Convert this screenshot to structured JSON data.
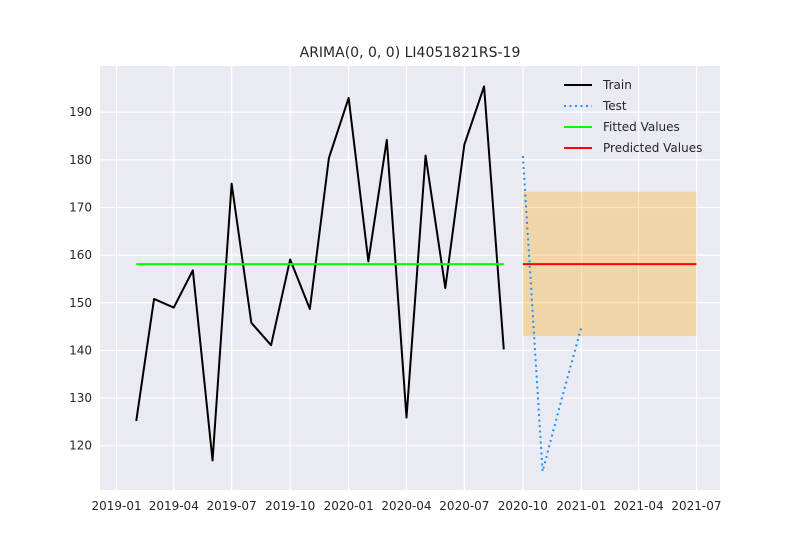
{
  "chart_data": {
    "type": "line",
    "title": "ARIMA(0, 0, 0) LI4051821RS-19",
    "xlabel": "",
    "ylabel": "",
    "x_axis": "date",
    "xlim": [
      "2018-12-06",
      "2021-08-07"
    ],
    "ylim": [
      110.7,
      199.7
    ],
    "x_ticks": [
      "2019-01",
      "2019-04",
      "2019-07",
      "2019-10",
      "2020-01",
      "2020-04",
      "2020-07",
      "2020-10",
      "2021-01",
      "2021-04",
      "2021-07"
    ],
    "y_ticks": [
      120,
      130,
      140,
      150,
      160,
      170,
      180,
      190
    ],
    "grid": true,
    "legend_position": "upper right",
    "series": [
      {
        "name": "Train",
        "style": "solid",
        "color": "#000000",
        "points": [
          [
            "2019-02-01",
            125.2
          ],
          [
            "2019-03-01",
            150.8
          ],
          [
            "2019-04-01",
            149.0
          ],
          [
            "2019-05-01",
            156.8
          ],
          [
            "2019-06-01",
            116.9
          ],
          [
            "2019-07-01",
            175.0
          ],
          [
            "2019-08-01",
            145.8
          ],
          [
            "2019-09-01",
            141.1
          ],
          [
            "2019-10-01",
            159.1
          ],
          [
            "2019-11-01",
            148.7
          ],
          [
            "2019-12-01",
            180.4
          ],
          [
            "2020-01-01",
            193.0
          ],
          [
            "2020-02-01",
            158.7
          ],
          [
            "2020-03-01",
            184.2
          ],
          [
            "2020-04-01",
            125.9
          ],
          [
            "2020-05-01",
            180.9
          ],
          [
            "2020-06-01",
            153.1
          ],
          [
            "2020-07-01",
            183.2
          ],
          [
            "2020-08-01",
            195.4
          ],
          [
            "2020-09-01",
            140.2
          ]
        ]
      },
      {
        "name": "Test",
        "style": "dotted",
        "color": "#1e90ff",
        "points": [
          [
            "2020-10-01",
            180.8
          ],
          [
            "2020-11-01",
            114.6
          ],
          [
            "2020-12-01",
            129.8
          ],
          [
            "2021-01-01",
            144.9
          ]
        ]
      },
      {
        "name": "Fitted Values",
        "style": "solid",
        "color": "#00ff00",
        "points": [
          [
            "2019-02-01",
            158.1
          ],
          [
            "2020-09-01",
            158.1
          ]
        ]
      },
      {
        "name": "Predicted Values",
        "style": "solid",
        "color": "#ff0000",
        "points": [
          [
            "2020-10-01",
            158.1
          ],
          [
            "2021-07-01",
            158.1
          ]
        ]
      }
    ],
    "confidence_band": {
      "color": "#ffa500",
      "opacity": 0.3,
      "x_range": [
        "2020-10-01",
        "2021-07-01"
      ],
      "lower": 143.0,
      "upper": 173.3
    }
  }
}
